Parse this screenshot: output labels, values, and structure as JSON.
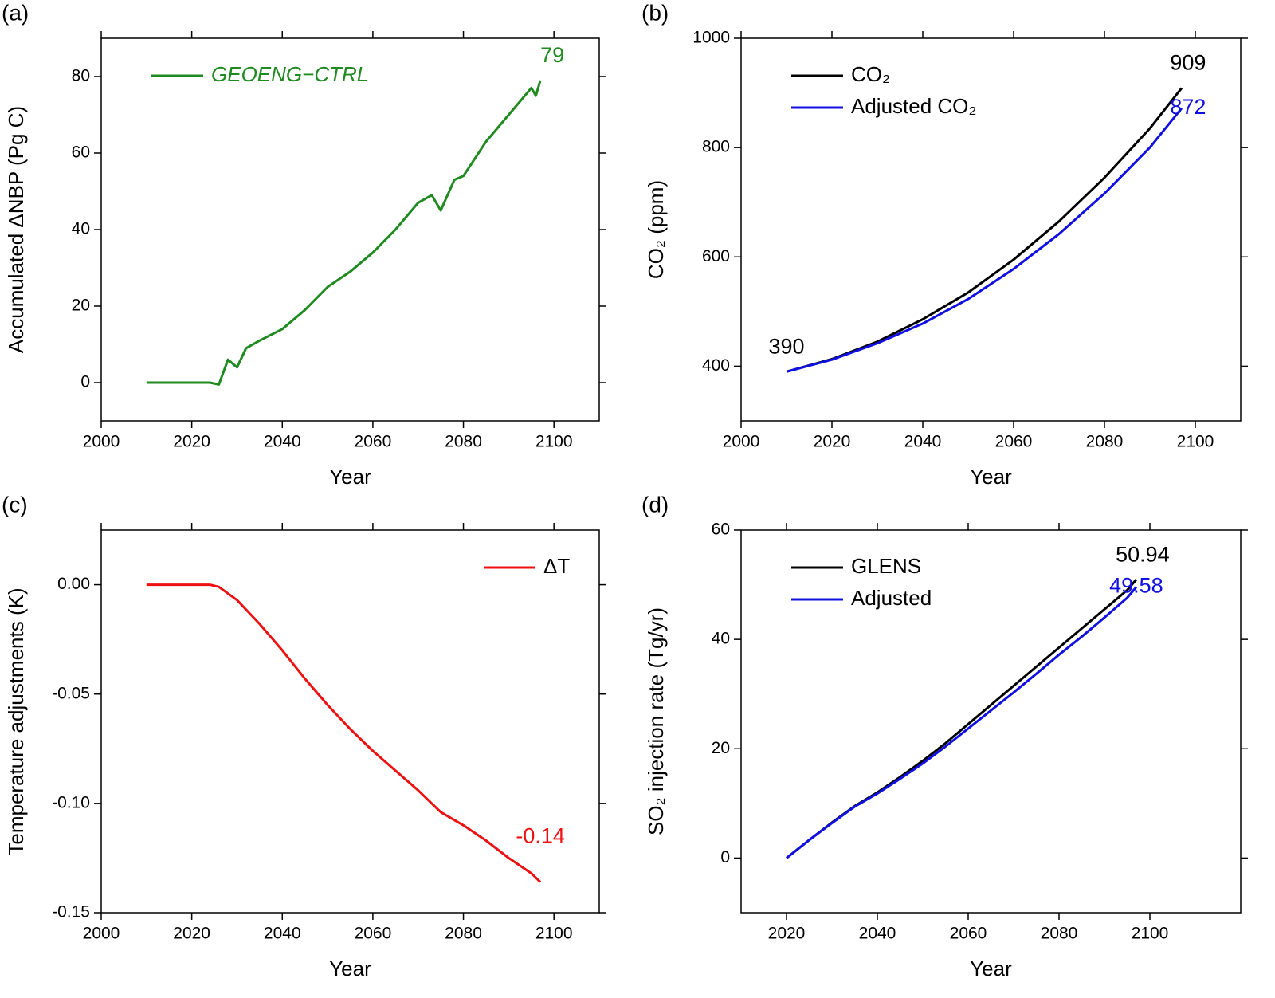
{
  "chart_data": [
    {
      "type": "line",
      "panel_label": "(a)",
      "x_label": "Year",
      "y_label": "Accumulated ΔNBP (Pg C)",
      "xlim": [
        2000,
        2110
      ],
      "xticks": [
        2000,
        2020,
        2040,
        2060,
        2080,
        2100
      ],
      "ylim": [
        -10,
        90
      ],
      "yticks": [
        0,
        20,
        40,
        60,
        80
      ],
      "legend": "upper left",
      "legend_italic": true,
      "x": [
        2010,
        2015,
        2020,
        2024,
        2026,
        2028,
        2030,
        2032,
        2035,
        2040,
        2045,
        2050,
        2055,
        2060,
        2065,
        2070,
        2073,
        2075,
        2078,
        2080,
        2085,
        2090,
        2095,
        2096,
        2097
      ],
      "series": [
        {
          "name": "GEOENG−CTRL",
          "color": "#1f8a1f",
          "end_label": "79",
          "values": [
            0,
            0,
            0,
            0,
            -0.5,
            6,
            4,
            9,
            11,
            14,
            19,
            25,
            29,
            34,
            40,
            47,
            49,
            45,
            53,
            54,
            63,
            70,
            77,
            75,
            79
          ]
        }
      ]
    },
    {
      "type": "line",
      "panel_label": "(b)",
      "x_label": "Year",
      "y_label": "CO₂ (ppm)",
      "xlim": [
        2000,
        2110
      ],
      "xticks": [
        2000,
        2020,
        2040,
        2060,
        2080,
        2100
      ],
      "ylim": [
        300,
        1000
      ],
      "yticks": [
        400,
        600,
        800,
        1000
      ],
      "legend": "upper left",
      "legend_italic": false,
      "x": [
        2010,
        2020,
        2030,
        2040,
        2050,
        2060,
        2070,
        2080,
        2090,
        2097
      ],
      "series": [
        {
          "name": "CO₂",
          "color": "#000000",
          "start_label": "390",
          "end_label": "909",
          "values": [
            390,
            413,
            445,
            486,
            535,
            595,
            665,
            745,
            835,
            909
          ]
        },
        {
          "name": "Adjusted CO₂",
          "color": "#1010e0",
          "end_label": "872",
          "values": [
            390,
            412,
            442,
            478,
            523,
            578,
            642,
            716,
            800,
            872
          ]
        }
      ]
    },
    {
      "type": "line",
      "panel_label": "(c)",
      "x_label": "Year",
      "y_label": "Temperature adjustments (K)",
      "xlim": [
        2000,
        2110
      ],
      "xticks": [
        2000,
        2020,
        2040,
        2060,
        2080,
        2100
      ],
      "ylim": [
        -0.15,
        0.025
      ],
      "yticks": [
        {
          "value": 0,
          "label": "0.00"
        },
        {
          "value": -0.05,
          "label": "-0.05"
        },
        {
          "value": -0.1,
          "label": "-0.10"
        },
        {
          "value": -0.15,
          "label": "-0.15"
        }
      ],
      "legend": "upper right",
      "legend_italic": false,
      "x": [
        2010,
        2020,
        2024,
        2026,
        2030,
        2035,
        2040,
        2045,
        2050,
        2055,
        2060,
        2065,
        2070,
        2075,
        2080,
        2085,
        2090,
        2095,
        2097
      ],
      "series": [
        {
          "name": "ΔT",
          "color": "#ee1111",
          "end_label": "-0.14",
          "values": [
            0,
            0,
            0,
            -0.001,
            -0.007,
            -0.018,
            -0.03,
            -0.043,
            -0.055,
            -0.066,
            -0.076,
            -0.085,
            -0.094,
            -0.104,
            -0.11,
            -0.117,
            -0.125,
            -0.132,
            -0.136
          ]
        }
      ]
    },
    {
      "type": "line",
      "panel_label": "(d)",
      "x_label": "Year",
      "y_label": "SO₂ injection rate (Tg/yr)",
      "xlim": [
        2010,
        2120
      ],
      "xticks": [
        2020,
        2040,
        2060,
        2080,
        2100
      ],
      "ylim": [
        -10,
        60
      ],
      "yticks": [
        0,
        20,
        40,
        60
      ],
      "legend": "upper left",
      "legend_italic": false,
      "x": [
        2020,
        2025,
        2030,
        2035,
        2040,
        2045,
        2050,
        2055,
        2060,
        2065,
        2070,
        2075,
        2080,
        2085,
        2090,
        2095,
        2097
      ],
      "series": [
        {
          "name": "GLENS",
          "color": "#000000",
          "end_label": "50.94",
          "values": [
            0,
            3.3,
            6.5,
            9.5,
            12,
            14.8,
            17.8,
            21,
            24.5,
            28,
            31.5,
            35,
            38.5,
            42,
            45.5,
            49,
            50.94
          ]
        },
        {
          "name": "Adjusted",
          "color": "#1010e0",
          "end_label": "49.58",
          "values": [
            0,
            3.3,
            6.4,
            9.4,
            11.8,
            14.5,
            17.3,
            20.4,
            23.7,
            27,
            30.3,
            33.7,
            37.2,
            40.5,
            44,
            47.6,
            49.58
          ]
        }
      ]
    }
  ]
}
